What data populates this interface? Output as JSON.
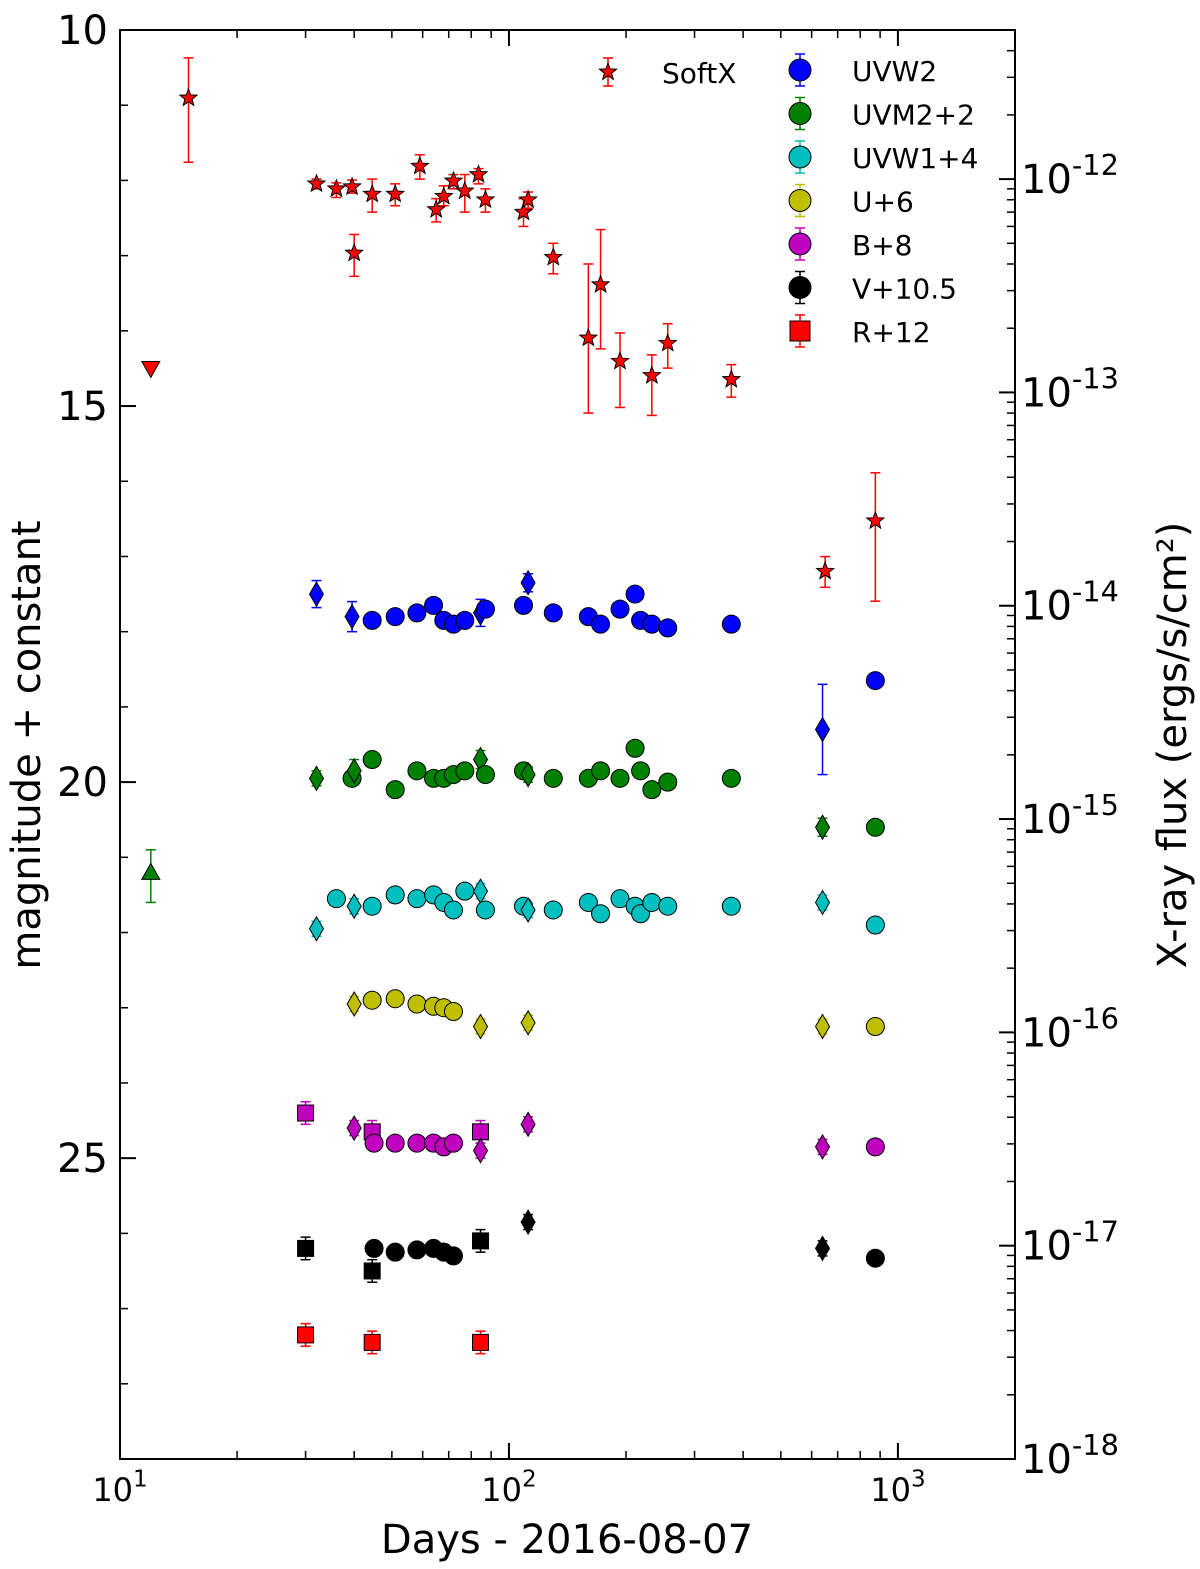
{
  "chart_data": {
    "type": "scatter",
    "xlabel": "Days - 2016-08-07",
    "ylabel_left": "magnitude + constant",
    "ylabel_right": "X-ray flux (ergs/s/cm²)",
    "xscale": "log",
    "xlim": [
      10,
      2000
    ],
    "ylim_left": [
      10,
      29
    ],
    "ylim_left_inverted": true,
    "yscale_right": "log",
    "ylim_right": [
      1e-18,
      5e-12
    ],
    "x_ticks": [
      {
        "value": 10,
        "base": "10",
        "exp": "1"
      },
      {
        "value": 100,
        "base": "10",
        "exp": "2"
      },
      {
        "value": 1000,
        "base": "10",
        "exp": "3"
      }
    ],
    "y_ticks_left": [
      {
        "value": 10,
        "label": "10"
      },
      {
        "value": 15,
        "label": "15"
      },
      {
        "value": 20,
        "label": "20"
      },
      {
        "value": 25,
        "label": "25"
      }
    ],
    "y_ticks_right": [
      {
        "value": 1e-12,
        "base": "10",
        "exp": "-12"
      },
      {
        "value": 1e-13,
        "base": "10",
        "exp": "-13"
      },
      {
        "value": 1e-14,
        "base": "10",
        "exp": "-14"
      },
      {
        "value": 1e-15,
        "base": "10",
        "exp": "-15"
      },
      {
        "value": 1e-16,
        "base": "10",
        "exp": "-16"
      },
      {
        "value": 1e-17,
        "base": "10",
        "exp": "-17"
      },
      {
        "value": 1e-18,
        "base": "10",
        "exp": "-18"
      }
    ],
    "legend": {
      "placement": "top-right",
      "entries": [
        {
          "name": "SoftX",
          "marker": "star",
          "color": "#ff0000"
        },
        {
          "name": "UVW2",
          "marker": "circle",
          "color": "#0000ff"
        },
        {
          "name": "UVM2+2",
          "marker": "circle",
          "color": "#008000"
        },
        {
          "name": "UVW1+4",
          "marker": "circle",
          "color": "#00bfbf"
        },
        {
          "name": "U+6",
          "marker": "circle",
          "color": "#bfbf00"
        },
        {
          "name": "B+8",
          "marker": "circle",
          "color": "#bf00bf"
        },
        {
          "name": "V+10.5",
          "marker": "circle",
          "color": "#000000"
        },
        {
          "name": "R+12",
          "marker": "square",
          "color": "#ff0000"
        }
      ]
    },
    "softx": {
      "color": "#ff0000",
      "points": [
        [
          15,
          2.4e-12,
          3.7e-12,
          1.2e-12
        ],
        [
          32,
          9.5e-13,
          1e-12,
          9e-13
        ],
        [
          36,
          9e-13,
          9.6e-13,
          8.2e-13
        ],
        [
          39.5,
          9.2e-13,
          9.9e-13,
          8.6e-13
        ],
        [
          40,
          4.5e-13,
          5.5e-13,
          3.5e-13
        ],
        [
          44.5,
          8.5e-13,
          1e-12,
          7e-13
        ],
        [
          51,
          8.5e-13,
          9.5e-13,
          7.5e-13
        ],
        [
          59,
          1.15e-12,
          1.3e-12,
          1e-12
        ],
        [
          65,
          7.2e-13,
          8.1e-13,
          6.3e-13
        ],
        [
          68,
          8.3e-13,
          9.3e-13,
          7.5e-13
        ],
        [
          72,
          9.8e-13,
          1.05e-12,
          9e-13
        ],
        [
          77,
          8.8e-13,
          1.05e-12,
          7e-13
        ],
        [
          83.5,
          1.05e-12,
          1.12e-12,
          9.5e-13
        ],
        [
          87,
          8e-13,
          9e-13,
          7e-13
        ],
        [
          109,
          7e-13,
          8.1e-13,
          6e-13
        ],
        [
          112,
          8e-13,
          8.7e-13,
          7.3e-13
        ],
        [
          130,
          4.3e-13,
          5e-13,
          3.6e-13
        ],
        [
          160,
          1.8e-13,
          4e-13,
          8e-14
        ],
        [
          172,
          3.2e-13,
          5.8e-13,
          1.6e-13
        ],
        [
          193,
          1.4e-13,
          1.9e-13,
          8.5e-14
        ],
        [
          233,
          1.2e-13,
          1.5e-13,
          7.8e-14
        ],
        [
          256,
          1.7e-13,
          2.1e-13,
          1.3e-13
        ],
        [
          373,
          1.15e-13,
          1.35e-13,
          9.5e-14
        ],
        [
          650,
          1.45e-14,
          1.7e-14,
          1.22e-14
        ],
        [
          875,
          2.5e-14,
          4.2e-14,
          1.05e-14
        ]
      ]
    },
    "uvot_upper_limits": [
      {
        "filter": "SoftX",
        "x": 12,
        "mag": 14.5,
        "marker": "triangle-down",
        "color": "#ff0000"
      },
      {
        "filter": "UVM2+2",
        "x": 12,
        "mag": 21.2,
        "err_up": 20.9,
        "err_down": 21.6,
        "marker": "triangle-up",
        "color": "#008000"
      }
    ],
    "series": [
      {
        "name": "UVW2",
        "color": "#0000ff",
        "points": [
          [
            32,
            17.5,
            "d",
            0.18
          ],
          [
            39.5,
            17.8,
            "d",
            0.2
          ],
          [
            44.5,
            17.85,
            "o",
            0
          ],
          [
            51,
            17.8,
            "o",
            0
          ],
          [
            58,
            17.75,
            "o",
            0
          ],
          [
            64,
            17.65,
            "o",
            0
          ],
          [
            68,
            17.85,
            "o",
            0
          ],
          [
            72,
            17.9,
            "o",
            0
          ],
          [
            77,
            17.85,
            "o",
            0
          ],
          [
            84.5,
            17.75,
            "d",
            0.18
          ],
          [
            87,
            17.7,
            "o",
            0
          ],
          [
            109,
            17.65,
            "o",
            0
          ],
          [
            112,
            17.35,
            "d",
            0.12
          ],
          [
            130,
            17.75,
            "o",
            0
          ],
          [
            160,
            17.8,
            "o",
            0
          ],
          [
            172,
            17.9,
            "o",
            0
          ],
          [
            193,
            17.7,
            "o",
            0
          ],
          [
            211,
            17.5,
            "o",
            0
          ],
          [
            218,
            17.85,
            "o",
            0
          ],
          [
            233,
            17.9,
            "o",
            0
          ],
          [
            256,
            17.95,
            "o",
            0
          ],
          [
            373,
            17.9,
            "o",
            0
          ],
          [
            640,
            19.3,
            "d",
            0.6
          ],
          [
            875,
            18.65,
            "o",
            0
          ]
        ]
      },
      {
        "name": "UVM2+2",
        "color": "#008000",
        "points": [
          [
            32,
            19.95,
            "d",
            0.1
          ],
          [
            39.5,
            19.95,
            "o",
            0
          ],
          [
            40,
            19.85,
            "d",
            0.15
          ],
          [
            44.5,
            19.7,
            "o",
            0
          ],
          [
            51,
            20.1,
            "o",
            0
          ],
          [
            58,
            19.85,
            "o",
            0
          ],
          [
            64,
            19.95,
            "o",
            0
          ],
          [
            68,
            19.95,
            "o",
            0
          ],
          [
            72,
            19.9,
            "o",
            0
          ],
          [
            77,
            19.85,
            "o",
            0
          ],
          [
            84.5,
            19.7,
            "d",
            0.12
          ],
          [
            87,
            19.9,
            "o",
            0
          ],
          [
            109,
            19.85,
            "o",
            0
          ],
          [
            112,
            19.9,
            "d",
            0.1
          ],
          [
            130,
            19.95,
            "o",
            0
          ],
          [
            160,
            19.95,
            "o",
            0
          ],
          [
            172,
            19.85,
            "o",
            0
          ],
          [
            193,
            19.95,
            "o",
            0
          ],
          [
            211,
            19.55,
            "o",
            0
          ],
          [
            218,
            19.85,
            "o",
            0
          ],
          [
            233,
            20.1,
            "o",
            0
          ],
          [
            256,
            20.0,
            "o",
            0
          ],
          [
            373,
            19.95,
            "o",
            0
          ],
          [
            640,
            20.6,
            "d",
            0.12
          ],
          [
            875,
            20.6,
            "o",
            0
          ]
        ]
      },
      {
        "name": "UVW1+4",
        "color": "#00bfbf",
        "points": [
          [
            32,
            21.95,
            "d",
            0.1
          ],
          [
            36,
            21.55,
            "o",
            0
          ],
          [
            40,
            21.65,
            "d",
            0.1
          ],
          [
            44.5,
            21.65,
            "o",
            0
          ],
          [
            51,
            21.5,
            "o",
            0
          ],
          [
            58,
            21.55,
            "o",
            0
          ],
          [
            64,
            21.5,
            "o",
            0
          ],
          [
            68,
            21.6,
            "o",
            0
          ],
          [
            72,
            21.7,
            "o",
            0
          ],
          [
            77,
            21.45,
            "o",
            0
          ],
          [
            84.5,
            21.45,
            "d",
            0.1
          ],
          [
            87,
            21.7,
            "o",
            0
          ],
          [
            109,
            21.65,
            "o",
            0
          ],
          [
            112,
            21.7,
            "d",
            0.1
          ],
          [
            130,
            21.7,
            "o",
            0
          ],
          [
            160,
            21.6,
            "o",
            0
          ],
          [
            172,
            21.75,
            "o",
            0
          ],
          [
            193,
            21.55,
            "o",
            0
          ],
          [
            211,
            21.65,
            "o",
            0
          ],
          [
            218,
            21.75,
            "o",
            0
          ],
          [
            233,
            21.6,
            "o",
            0
          ],
          [
            256,
            21.65,
            "o",
            0
          ],
          [
            373,
            21.65,
            "o",
            0
          ],
          [
            640,
            21.6,
            "d",
            0.1
          ],
          [
            875,
            21.9,
            "o",
            0
          ]
        ]
      },
      {
        "name": "U+6",
        "color": "#bfbf00",
        "points": [
          [
            40,
            22.95,
            "d",
            0.1
          ],
          [
            44.5,
            22.9,
            "o",
            0
          ],
          [
            51,
            22.88,
            "o",
            0
          ],
          [
            58,
            22.95,
            "o",
            0
          ],
          [
            64,
            22.98,
            "o",
            0
          ],
          [
            68,
            23.0,
            "o",
            0
          ],
          [
            72,
            23.05,
            "o",
            0
          ],
          [
            84.5,
            23.25,
            "d",
            0.1
          ],
          [
            112,
            23.2,
            "d",
            0.1
          ],
          [
            640,
            23.25,
            "d",
            0.1
          ],
          [
            875,
            23.25,
            "o",
            0
          ]
        ]
      },
      {
        "name": "B+8",
        "color": "#bf00bf",
        "points": [
          [
            30,
            24.4,
            "s",
            0.15
          ],
          [
            40,
            24.6,
            "d",
            0.1
          ],
          [
            44.5,
            24.65,
            "s",
            0.15
          ],
          [
            45,
            24.8,
            "o",
            0
          ],
          [
            51,
            24.8,
            "o",
            0
          ],
          [
            58,
            24.8,
            "o",
            0
          ],
          [
            64,
            24.8,
            "o",
            0
          ],
          [
            68,
            24.85,
            "o",
            0
          ],
          [
            72,
            24.8,
            "o",
            0
          ],
          [
            84.5,
            24.65,
            "s",
            0.15
          ],
          [
            84.5,
            24.9,
            "d",
            0.1
          ],
          [
            112,
            24.55,
            "d",
            0.1
          ],
          [
            640,
            24.85,
            "d",
            0.1
          ],
          [
            875,
            24.85,
            "o",
            0
          ]
        ]
      },
      {
        "name": "V+10.5",
        "color": "#000000",
        "points": [
          [
            30,
            26.2,
            "s",
            0.15
          ],
          [
            44.5,
            26.5,
            "s",
            0.15
          ],
          [
            45,
            26.2,
            "o",
            0
          ],
          [
            51,
            26.25,
            "o",
            0
          ],
          [
            58,
            26.22,
            "o",
            0
          ],
          [
            64,
            26.2,
            "o",
            0
          ],
          [
            68,
            26.25,
            "o",
            0
          ],
          [
            72,
            26.3,
            "o",
            0
          ],
          [
            84.5,
            26.1,
            "s",
            0.15
          ],
          [
            112,
            25.85,
            "d",
            0.1
          ],
          [
            640,
            26.2,
            "d",
            0.1
          ],
          [
            875,
            26.33,
            "o",
            0
          ]
        ]
      },
      {
        "name": "R+12",
        "color": "#ff0000",
        "points": [
          [
            30,
            27.35,
            "s",
            0.15
          ],
          [
            44.5,
            27.45,
            "s",
            0.15
          ],
          [
            84.5,
            27.45,
            "s",
            0.15
          ]
        ]
      }
    ]
  }
}
